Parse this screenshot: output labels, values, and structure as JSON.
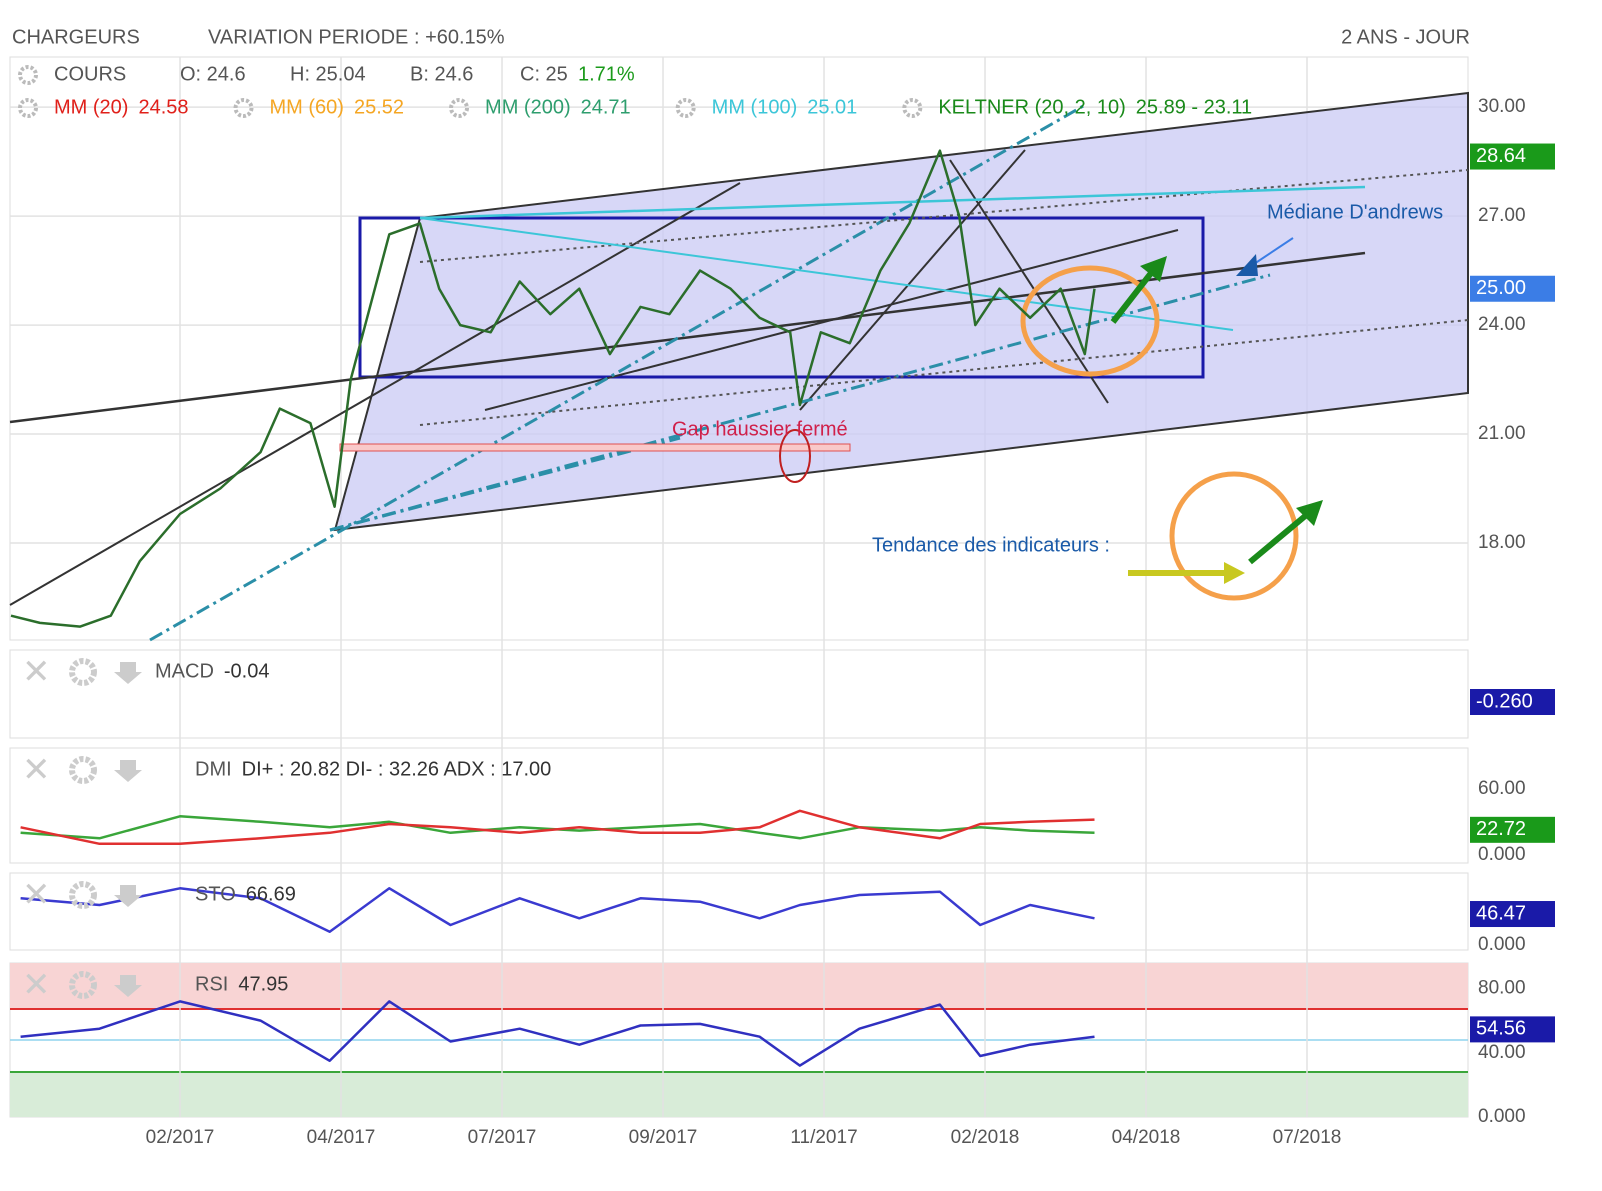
{
  "header": {
    "symbol": "CHARGEURS",
    "variation": "VARIATION PERIODE : +60.15%",
    "period": "2 ANS - JOUR"
  },
  "chart_data": [
    {
      "type": "line",
      "name": "COURS",
      "info": [
        "O: 24.6",
        "H: 25.04",
        "B: 24.6",
        "C: 25"
      ],
      "change": "1.71%",
      "overlays": [
        {
          "name": "MM (20)",
          "value": "24.58",
          "color": "#e0201a"
        },
        {
          "name": "MM (60)",
          "value": "25.52",
          "color": "#f5a623"
        },
        {
          "name": "MM (200)",
          "value": "24.71",
          "color": "#2e9e6e"
        },
        {
          "name": "MM (100)",
          "value": "25.01",
          "color": "#3cc6d8"
        },
        {
          "name": "KELTNER (20, 2, 10)",
          "value": "25.89 - 23.11",
          "color": "#1a8a1a"
        }
      ],
      "annotations": [
        "Médiane D'andrews",
        "Gap haussier fermé",
        "Tendance des indicateurs :"
      ],
      "tags": [
        {
          "value": 28.64,
          "color": "#1a9a1a"
        },
        {
          "value": 25,
          "label": "25.00",
          "color": "#3b7de6"
        }
      ],
      "x": [
        -1.05,
        -0.87,
        -0.62,
        -0.43,
        -0.25,
        0,
        0.25,
        0.5,
        0.62,
        0.81,
        0.96,
        1.06,
        1.18,
        1.3,
        1.49,
        1.61,
        1.74,
        1.93,
        2.11,
        2.3,
        2.48,
        2.67,
        2.86,
        3.04,
        3.23,
        3.42,
        3.6,
        3.79,
        3.85,
        3.98,
        4.16,
        4.35,
        4.53,
        4.72,
        4.84,
        4.94,
        5.09,
        5.28,
        5.47,
        5.62,
        5.68
      ],
      "series": [
        {
          "name": "COURS",
          "color": "#2b6e2b",
          "values": [
            16.0,
            15.8,
            15.7,
            16.0,
            17.5,
            18.8,
            19.5,
            20.5,
            21.7,
            21.3,
            19.0,
            22.5,
            24.5,
            26.5,
            26.8,
            25.0,
            24.0,
            23.8,
            25.2,
            24.3,
            25.0,
            23.2,
            24.5,
            24.3,
            25.5,
            25.0,
            24.2,
            23.8,
            21.8,
            23.8,
            23.5,
            25.5,
            26.8,
            28.8,
            27.0,
            24.0,
            25.0,
            24.2,
            25.0,
            23.2,
            25.0
          ]
        }
      ],
      "xlim": [
        -1.056,
        8.0
      ],
      "xticks": [
        {
          "value": 0,
          "label": "02/2017"
        },
        {
          "value": 1,
          "label": "04/2017"
        },
        {
          "value": 2,
          "label": "07/2017"
        },
        {
          "value": 3,
          "label": "09/2017"
        },
        {
          "value": 4,
          "label": "11/2017"
        },
        {
          "value": 5,
          "label": "02/2018"
        },
        {
          "value": 6,
          "label": "04/2018"
        },
        {
          "value": 7,
          "label": "07/2018"
        }
      ],
      "ylim": [
        15.33,
        31.38
      ],
      "yticks": [
        {
          "value": 30,
          "label": "30.00"
        },
        {
          "value": 27,
          "label": "27.00"
        },
        {
          "value": 24,
          "label": "24.00"
        },
        {
          "value": 21,
          "label": "21.00"
        },
        {
          "value": 18,
          "label": "18.00"
        }
      ],
      "grid": true
    },
    {
      "type": "panel",
      "name": "MACD",
      "readout": "-0.04",
      "tag": {
        "label": "-0.260",
        "color": "#1a1aa8"
      }
    },
    {
      "type": "line",
      "name": "DMI",
      "readout": "DI+ : 20.82 DI- : 32.26 ADX : 17.00",
      "tag": {
        "value": 22.72,
        "color": "#1a9a1a"
      },
      "x": [
        -0.99,
        -0.5,
        0,
        0.5,
        0.93,
        1.3,
        1.68,
        2.11,
        2.48,
        2.86,
        3.23,
        3.6,
        3.85,
        4.22,
        4.72,
        4.97,
        5.28,
        5.68
      ],
      "series": [
        {
          "name": "DI+",
          "color": "#3aa63a",
          "values": [
            20,
            15,
            35,
            30,
            25,
            30,
            20,
            25,
            22,
            25,
            28,
            20,
            15,
            25,
            22,
            25,
            22,
            20
          ]
        },
        {
          "name": "DI-",
          "color": "#e03030",
          "values": [
            25,
            10,
            10,
            15,
            20,
            28,
            25,
            20,
            25,
            20,
            20,
            25,
            40,
            25,
            15,
            28,
            30,
            32
          ]
        }
      ],
      "xlim": [
        -1.056,
        8.0
      ],
      "ylim": [
        -7.4,
        97
      ],
      "yticks": [
        {
          "value": 60,
          "label": "60.00"
        },
        {
          "value": 0,
          "label": "0.000"
        }
      ]
    },
    {
      "type": "line",
      "name": "STO",
      "readout": "66.69",
      "tag": {
        "value": 46.47,
        "color": "#1a1aa8"
      },
      "x": [
        -0.99,
        -0.5,
        0,
        0.5,
        0.93,
        1.3,
        1.68,
        2.11,
        2.48,
        2.86,
        3.23,
        3.6,
        3.85,
        4.22,
        4.72,
        4.97,
        5.28,
        5.68
      ],
      "series": [
        {
          "name": "STO",
          "color": "#3a3ad0",
          "values": [
            70,
            60,
            85,
            70,
            20,
            85,
            30,
            70,
            40,
            70,
            65,
            40,
            60,
            75,
            80,
            30,
            60,
            40
          ]
        }
      ],
      "xlim": [
        -1.056,
        8.0
      ],
      "ylim": [
        -7.5,
        108
      ],
      "yticks": [
        {
          "value": 0,
          "label": "0.000"
        }
      ]
    },
    {
      "type": "line",
      "name": "RSI",
      "readout": "47.95",
      "tag": {
        "value": 54.56,
        "color": "#1a1aa8"
      },
      "x": [
        -0.99,
        -0.5,
        0,
        0.5,
        0.93,
        1.3,
        1.68,
        2.11,
        2.48,
        2.86,
        3.23,
        3.6,
        3.85,
        4.22,
        4.72,
        4.97,
        5.28,
        5.68
      ],
      "series": [
        {
          "name": "RSI",
          "color": "#3030c0",
          "values": [
            50,
            55,
            72,
            60,
            35,
            72,
            47,
            55,
            45,
            57,
            58,
            50,
            32,
            55,
            70,
            38,
            45,
            50
          ]
        }
      ],
      "xlim": [
        -1.056,
        8.0
      ],
      "ylim": [
        0,
        95.9
      ],
      "yticks": [
        {
          "value": 80,
          "label": "80.00"
        },
        {
          "value": 40,
          "label": "40.00"
        },
        {
          "value": 0,
          "label": "0.000"
        }
      ]
    }
  ]
}
